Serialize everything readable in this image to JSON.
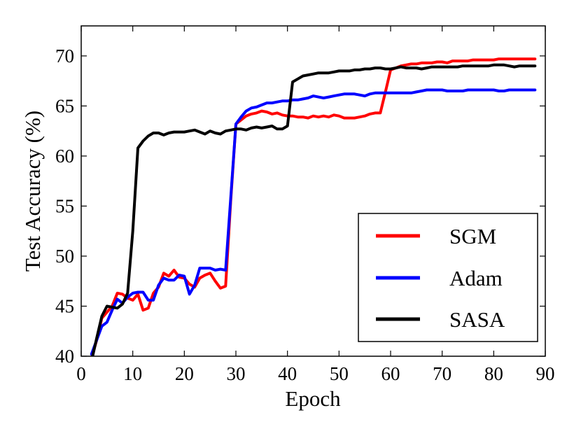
{
  "chart_data": {
    "type": "line",
    "title": "",
    "xlabel": "Epoch",
    "ylabel": "Test Accuracy (%)",
    "xlim": [
      0,
      90
    ],
    "ylim": [
      40,
      73
    ],
    "xticks": [
      "0",
      "10",
      "20",
      "30",
      "40",
      "50",
      "60",
      "70",
      "80",
      "90"
    ],
    "yticks": [
      "40",
      "45",
      "50",
      "55",
      "60",
      "65",
      "70"
    ],
    "grid": false,
    "legend_position": "lower-right",
    "series": [
      {
        "name": "SGM",
        "color": "#ff0000",
        "x": [
          2,
          3,
          4,
          5,
          6,
          7,
          8,
          9,
          10,
          11,
          12,
          13,
          14,
          15,
          16,
          17,
          18,
          19,
          20,
          21,
          22,
          23,
          24,
          25,
          26,
          27,
          28,
          29,
          30,
          31,
          32,
          33,
          34,
          35,
          36,
          37,
          38,
          39,
          40,
          41,
          42,
          43,
          44,
          45,
          46,
          47,
          48,
          49,
          50,
          51,
          52,
          53,
          54,
          55,
          56,
          57,
          58,
          59,
          60,
          61,
          62,
          63,
          64,
          65,
          66,
          67,
          68,
          69,
          70,
          71,
          72,
          73,
          74,
          75,
          76,
          77,
          78,
          79,
          80,
          81,
          82,
          83,
          84,
          85,
          86,
          87,
          88
        ],
        "y": [
          39.8,
          41.6,
          43.8,
          44.4,
          45.0,
          46.3,
          46.2,
          45.8,
          45.6,
          46.2,
          44.6,
          44.8,
          46.3,
          46.9,
          48.3,
          48.0,
          48.6,
          47.9,
          47.8,
          47.2,
          46.9,
          47.8,
          48.1,
          48.3,
          47.5,
          46.8,
          47.0,
          55.5,
          63.2,
          63.6,
          64.0,
          64.2,
          64.3,
          64.5,
          64.4,
          64.2,
          64.3,
          64.1,
          64.0,
          64.0,
          63.9,
          63.9,
          63.8,
          64.0,
          63.9,
          64.0,
          63.9,
          64.1,
          64.0,
          63.8,
          63.8,
          63.8,
          63.9,
          64.0,
          64.2,
          64.3,
          64.3,
          66.4,
          68.6,
          68.8,
          69.0,
          69.1,
          69.2,
          69.2,
          69.3,
          69.3,
          69.3,
          69.4,
          69.4,
          69.3,
          69.5,
          69.5,
          69.5,
          69.5,
          69.6,
          69.6,
          69.6,
          69.6,
          69.6,
          69.7,
          69.7,
          69.7,
          69.7,
          69.7,
          69.7,
          69.7,
          69.7
        ]
      },
      {
        "name": "Adam",
        "color": "#0000ff",
        "x": [
          2,
          3,
          4,
          5,
          6,
          7,
          8,
          9,
          10,
          11,
          12,
          13,
          14,
          15,
          16,
          17,
          18,
          19,
          20,
          21,
          22,
          23,
          24,
          25,
          26,
          27,
          28,
          29,
          30,
          31,
          32,
          33,
          34,
          35,
          36,
          37,
          38,
          39,
          40,
          41,
          42,
          43,
          44,
          45,
          46,
          47,
          48,
          49,
          50,
          51,
          52,
          53,
          54,
          55,
          56,
          57,
          58,
          59,
          60,
          61,
          62,
          63,
          64,
          65,
          66,
          67,
          68,
          69,
          70,
          71,
          72,
          73,
          74,
          75,
          76,
          77,
          78,
          79,
          80,
          81,
          82,
          83,
          84,
          85,
          86,
          87,
          88
        ],
        "y": [
          40.2,
          41.6,
          43.0,
          43.4,
          44.6,
          45.7,
          45.3,
          45.9,
          46.3,
          46.4,
          46.4,
          45.6,
          45.6,
          47.1,
          47.8,
          47.6,
          47.6,
          48.1,
          48.0,
          46.2,
          47.1,
          48.8,
          48.8,
          48.8,
          48.6,
          48.7,
          48.6,
          55.8,
          63.2,
          63.9,
          64.5,
          64.8,
          64.9,
          65.1,
          65.3,
          65.3,
          65.4,
          65.5,
          65.5,
          65.6,
          65.6,
          65.7,
          65.8,
          66.0,
          65.9,
          65.8,
          65.9,
          66.0,
          66.1,
          66.2,
          66.2,
          66.2,
          66.1,
          66.0,
          66.2,
          66.3,
          66.3,
          66.3,
          66.3,
          66.3,
          66.3,
          66.3,
          66.3,
          66.4,
          66.5,
          66.6,
          66.6,
          66.6,
          66.6,
          66.5,
          66.5,
          66.5,
          66.5,
          66.6,
          66.6,
          66.6,
          66.6,
          66.6,
          66.6,
          66.5,
          66.5,
          66.6,
          66.6,
          66.6,
          66.6,
          66.6,
          66.6
        ]
      },
      {
        "name": "SASA",
        "color": "#000000",
        "x": [
          2,
          3,
          4,
          5,
          6,
          7,
          8,
          9,
          10,
          11,
          12,
          13,
          14,
          15,
          16,
          17,
          18,
          19,
          20,
          21,
          22,
          23,
          24,
          25,
          26,
          27,
          28,
          29,
          30,
          31,
          32,
          33,
          34,
          35,
          36,
          37,
          38,
          39,
          40,
          41,
          42,
          43,
          44,
          45,
          46,
          47,
          48,
          49,
          50,
          51,
          52,
          53,
          54,
          55,
          56,
          57,
          58,
          59,
          60,
          61,
          62,
          63,
          64,
          65,
          66,
          67,
          68,
          69,
          70,
          71,
          72,
          73,
          74,
          75,
          76,
          77,
          78,
          79,
          80,
          81,
          82,
          83,
          84,
          85,
          86,
          87,
          88
        ],
        "y": [
          39.5,
          41.8,
          44.0,
          45.0,
          44.9,
          44.8,
          45.2,
          46.3,
          52.5,
          60.8,
          61.5,
          62.0,
          62.3,
          62.3,
          62.1,
          62.3,
          62.4,
          62.4,
          62.4,
          62.5,
          62.6,
          62.4,
          62.2,
          62.5,
          62.3,
          62.2,
          62.5,
          62.6,
          62.7,
          62.7,
          62.6,
          62.8,
          62.9,
          62.8,
          62.9,
          63.0,
          62.7,
          62.7,
          63.0,
          67.4,
          67.7,
          68.0,
          68.1,
          68.2,
          68.3,
          68.3,
          68.3,
          68.4,
          68.5,
          68.5,
          68.5,
          68.6,
          68.6,
          68.7,
          68.7,
          68.8,
          68.8,
          68.7,
          68.7,
          68.8,
          68.9,
          68.8,
          68.8,
          68.8,
          68.7,
          68.8,
          68.9,
          68.9,
          68.9,
          68.9,
          68.9,
          68.9,
          69.0,
          69.0,
          69.0,
          69.0,
          69.0,
          69.0,
          69.1,
          69.1,
          69.1,
          69.0,
          68.9,
          69.0,
          69.0,
          69.0,
          69.0
        ]
      }
    ]
  }
}
